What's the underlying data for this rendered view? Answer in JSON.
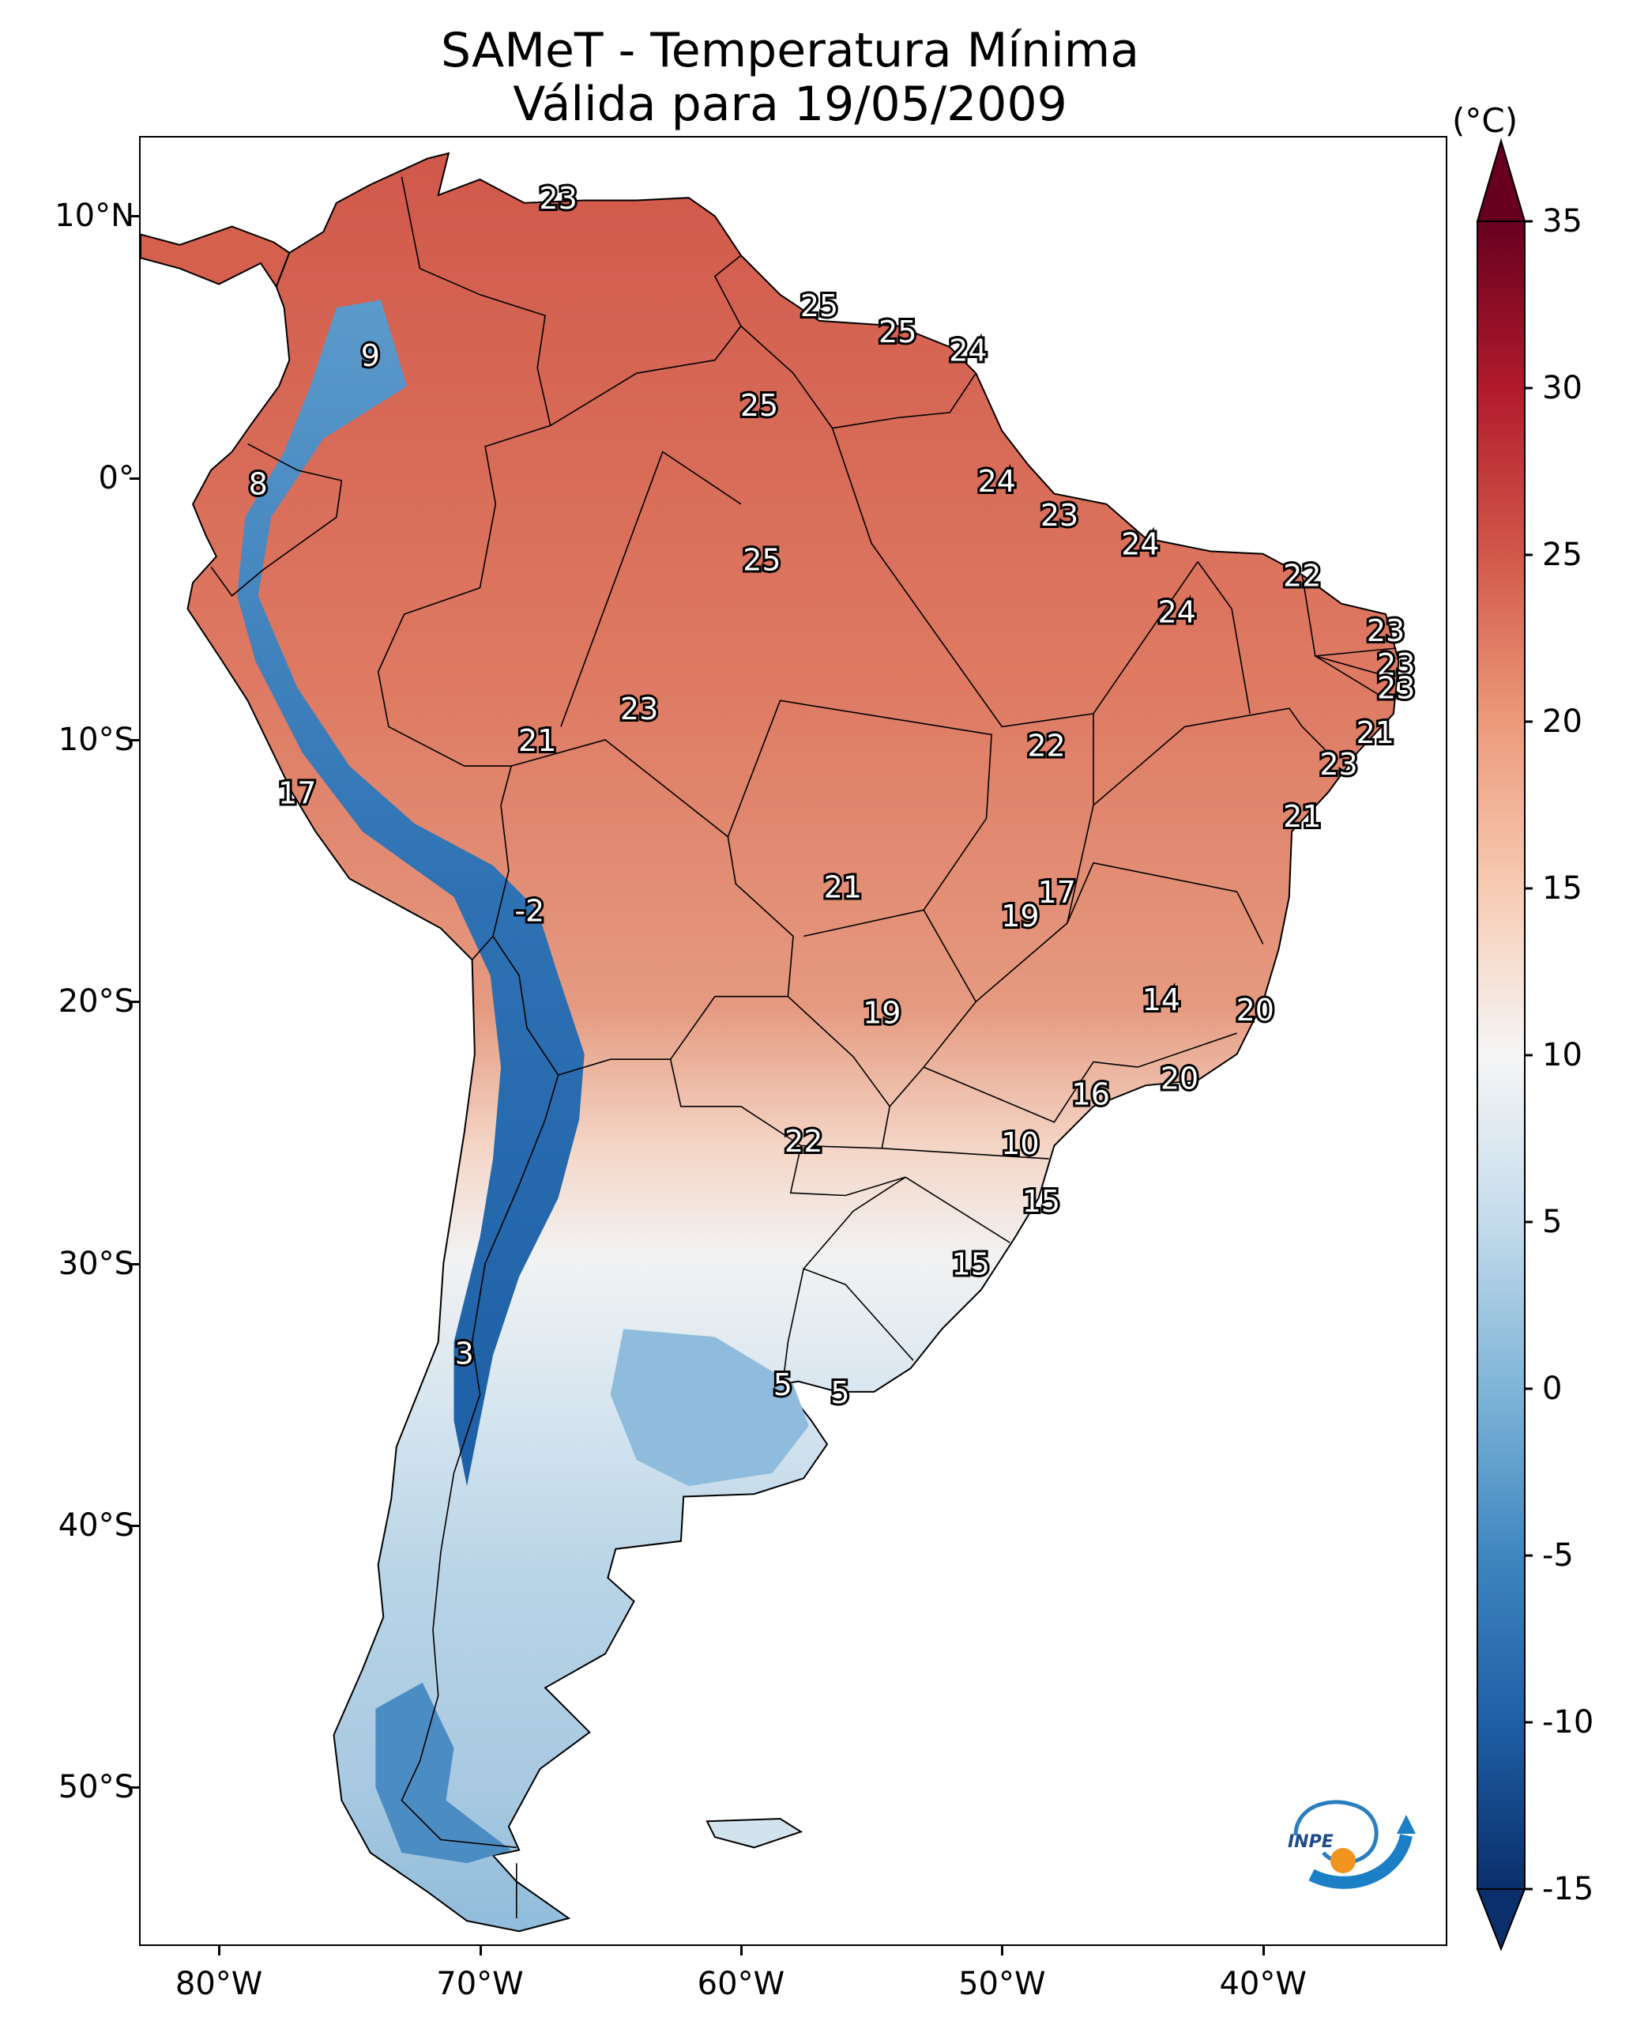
{
  "title_line1": "SAMeT - Temperatura Mínima",
  "title_line2": "Válida para 19/05/2009",
  "colorbar": {
    "unit": "(°C)",
    "min": -15,
    "max": 35,
    "ticks": [
      "35",
      "30",
      "25",
      "20",
      "15",
      "10",
      "5",
      "0",
      "-5",
      "-10",
      "-15"
    ],
    "tick_values": [
      35,
      30,
      25,
      20,
      15,
      10,
      5,
      0,
      -5,
      -10,
      -15
    ],
    "colormap": "RdBu_r",
    "extend": "both"
  },
  "axes": {
    "lat_labels": [
      "10°N",
      "0°",
      "10°S",
      "20°S",
      "30°S",
      "40°S",
      "50°S"
    ],
    "lat_values": [
      10,
      0,
      -10,
      -20,
      -30,
      -40,
      -50
    ],
    "lon_labels": [
      "80°W",
      "70°W",
      "60°W",
      "50°W",
      "40°W"
    ],
    "lon_values": [
      -80,
      -70,
      -60,
      -50,
      -40
    ],
    "lon_range": [
      -83,
      -33
    ],
    "lat_range": [
      -56,
      13
    ]
  },
  "point_values": [
    {
      "lon": -67.0,
      "lat": 10.7,
      "label": "23"
    },
    {
      "lon": -57.0,
      "lat": 6.6,
      "label": "25"
    },
    {
      "lon": -54.0,
      "lat": 5.6,
      "label": "25"
    },
    {
      "lon": -51.3,
      "lat": 4.9,
      "label": "24"
    },
    {
      "lon": -59.3,
      "lat": 2.8,
      "label": "25"
    },
    {
      "lon": -74.2,
      "lat": 4.7,
      "label": "9"
    },
    {
      "lon": -78.5,
      "lat": -0.2,
      "label": "8"
    },
    {
      "lon": -50.2,
      "lat": -0.1,
      "label": "24"
    },
    {
      "lon": -47.8,
      "lat": -1.4,
      "label": "23"
    },
    {
      "lon": -44.7,
      "lat": -2.5,
      "label": "24"
    },
    {
      "lon": -38.5,
      "lat": -3.7,
      "label": "22"
    },
    {
      "lon": -59.2,
      "lat": -3.1,
      "label": "25"
    },
    {
      "lon": -43.3,
      "lat": -5.1,
      "label": "24"
    },
    {
      "lon": -35.3,
      "lat": -5.8,
      "label": "23"
    },
    {
      "lon": -34.9,
      "lat": -7.1,
      "label": "23"
    },
    {
      "lon": -34.9,
      "lat": -8.0,
      "label": "23"
    },
    {
      "lon": -63.9,
      "lat": -8.8,
      "label": "23"
    },
    {
      "lon": -35.7,
      "lat": -9.7,
      "label": "21"
    },
    {
      "lon": -67.8,
      "lat": -10.0,
      "label": "21"
    },
    {
      "lon": -48.3,
      "lat": -10.2,
      "label": "22"
    },
    {
      "lon": -37.1,
      "lat": -10.9,
      "label": "23"
    },
    {
      "lon": -77.0,
      "lat": -12.0,
      "label": "17"
    },
    {
      "lon": -38.5,
      "lat": -12.9,
      "label": "21"
    },
    {
      "lon": -56.1,
      "lat": -15.6,
      "label": "21"
    },
    {
      "lon": -47.9,
      "lat": -15.8,
      "label": "17"
    },
    {
      "lon": -49.3,
      "lat": -16.7,
      "label": "19"
    },
    {
      "lon": -68.1,
      "lat": -16.5,
      "label": "-2"
    },
    {
      "lon": -43.9,
      "lat": -19.9,
      "label": "14"
    },
    {
      "lon": -40.3,
      "lat": -20.3,
      "label": "20"
    },
    {
      "lon": -54.6,
      "lat": -20.4,
      "label": "19"
    },
    {
      "lon": -43.2,
      "lat": -22.9,
      "label": "20"
    },
    {
      "lon": -46.6,
      "lat": -23.5,
      "label": "16"
    },
    {
      "lon": -57.6,
      "lat": -25.3,
      "label": "22"
    },
    {
      "lon": -49.3,
      "lat": -25.4,
      "label": "10"
    },
    {
      "lon": -48.5,
      "lat": -27.6,
      "label": "15"
    },
    {
      "lon": -51.2,
      "lat": -30.0,
      "label": "15"
    },
    {
      "lon": -70.6,
      "lat": -33.4,
      "label": "3"
    },
    {
      "lon": -58.4,
      "lat": -34.6,
      "label": "5"
    },
    {
      "lon": -56.2,
      "lat": -34.9,
      "label": "5"
    }
  ],
  "logo": {
    "text": "INPE"
  }
}
